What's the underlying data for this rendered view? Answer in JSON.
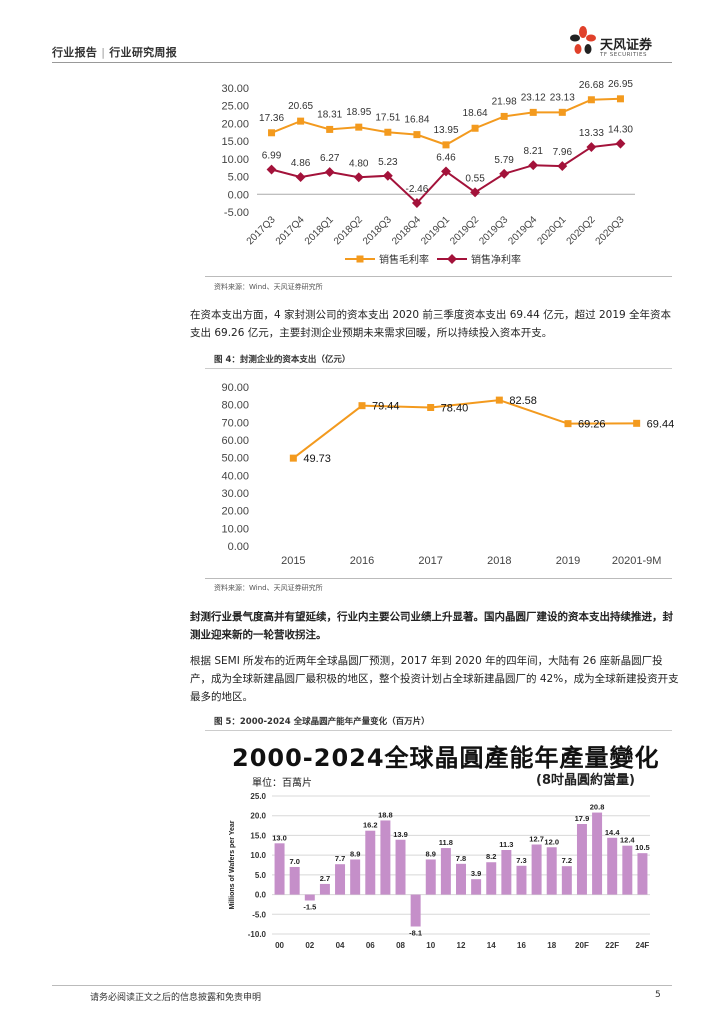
{
  "header": {
    "category": "行业报告",
    "subcategory": "行业研究周报",
    "company_name": "天风证券",
    "company_sub": "TF SECURITIES"
  },
  "chart1": {
    "source": "资料来源：Wind、天风证券研究所"
  },
  "paragraph1": "在资本支出方面，4 家封测公司的资本支出 2020 前三季度资本支出 69.44 亿元，超过 2019 全年资本支出 69.26 亿元，主要封测企业预期未来需求回暖，所以持续投入资本开支。",
  "chart2": {
    "title": "图 4：封测企业的资本支出（亿元）",
    "source": "资料来源：Wind、天风证券研究所"
  },
  "paragraph2": "封测行业景气度高并有望延续，行业内主要公司业绩上升显著。国内晶圆厂建设的资本支出持续推进，封测业迎来新的一轮营收拐注。",
  "paragraph3": "根据 SEMI 所发布的近两年全球晶圆厂预测，2017 年到 2020 年的四年间，大陆有 26 座新晶圆厂投产，成为全球新建晶圆厂最积极的地区，整个投资计划占全球新建晶圆厂的 42%，成为全球新建投资开支最多的地区。",
  "chart3": {
    "caption": "图 5：2000-2024 全球晶圆产能年产量变化（百万片）",
    "poster_title": "2000-2024全球晶圓產能年產量變化",
    "unit": "單位：百萬片",
    "note": "(8吋晶圓約當量)"
  },
  "footer": {
    "disclaimer": "请务必阅读正文之后的信息披露和免责申明",
    "page": "5"
  },
  "colors": {
    "orange": "#f39a1e",
    "crimson": "#a3123a",
    "violet": "#c58fc9"
  },
  "chart_data": [
    {
      "type": "line",
      "categories": [
        "2017Q3",
        "2017Q4",
        "2018Q1",
        "2018Q2",
        "2018Q3",
        "2018Q4",
        "2019Q1",
        "2019Q2",
        "2019Q3",
        "2019Q4",
        "2020Q1",
        "2020Q2",
        "2020Q3"
      ],
      "series": [
        {
          "name": "销售毛利率",
          "values": [
            17.36,
            20.65,
            18.31,
            18.95,
            17.51,
            16.84,
            13.95,
            18.64,
            21.98,
            23.12,
            23.13,
            26.68,
            26.95
          ],
          "labels": [
            "17.36",
            "20.65",
            "18.31",
            "18.95",
            "17.51",
            "16.84",
            "13.95",
            "18.64",
            "21.98",
            "23.12",
            "23.13",
            "26.68",
            "26.95"
          ]
        },
        {
          "name": "销售净利率",
          "values": [
            6.99,
            4.86,
            6.27,
            4.8,
            5.23,
            -2.46,
            6.46,
            0.55,
            5.79,
            8.21,
            7.96,
            13.33,
            14.3
          ],
          "labels": [
            "6.99",
            "4.86",
            "6.27",
            "4.80",
            "5.23",
            "-2.46",
            "6.46",
            "0.55",
            "5.79",
            "8.21",
            "7.96",
            "13.33",
            "14.30"
          ]
        }
      ],
      "ylim": [
        -5,
        30
      ],
      "yticks": [
        "-5.00",
        "0.00",
        "5.00",
        "10.00",
        "15.00",
        "20.00",
        "25.00",
        "30.00"
      ],
      "grid": false,
      "legend": "bottom"
    },
    {
      "type": "line",
      "categories": [
        "2015",
        "2016",
        "2017",
        "2018",
        "2019",
        "20201-9M"
      ],
      "series": [
        {
          "name": "",
          "values": [
            49.73,
            79.44,
            78.4,
            82.58,
            69.26,
            69.44
          ],
          "labels": [
            "49.73",
            "79.44",
            "78.40",
            "82.58",
            "69.26",
            "69.44"
          ]
        }
      ],
      "ylim": [
        0,
        90
      ],
      "yticks": [
        "0.00",
        "10.00",
        "20.00",
        "30.00",
        "40.00",
        "50.00",
        "60.00",
        "70.00",
        "80.00",
        "90.00"
      ],
      "grid": false
    },
    {
      "type": "bar",
      "categories": [
        "00",
        "01",
        "02",
        "03",
        "04",
        "05",
        "06",
        "07",
        "08",
        "09",
        "10",
        "11",
        "12",
        "13",
        "14",
        "15",
        "16",
        "17",
        "18",
        "19",
        "20F",
        "21F",
        "22F",
        "23F",
        "24F"
      ],
      "tick_labels": [
        "00",
        "02",
        "04",
        "06",
        "08",
        "10",
        "12",
        "14",
        "16",
        "18",
        "20F",
        "22F",
        "24F"
      ],
      "values": [
        13.0,
        7.0,
        -1.5,
        2.7,
        7.7,
        8.9,
        16.2,
        18.8,
        13.9,
        -8.1,
        8.9,
        11.8,
        7.8,
        3.9,
        8.2,
        11.3,
        7.3,
        12.7,
        12.0,
        7.2,
        17.9,
        20.8,
        14.4,
        12.4,
        10.5
      ],
      "labels": [
        "13.0",
        "7.0",
        "-1.5",
        "2.7",
        "7.7",
        "8.9",
        "16.2",
        "18.8",
        "13.9",
        "-8.1",
        "8.9",
        "11.8",
        "7.8",
        "3.9",
        "8.2",
        "11.3",
        "7.3",
        "12.7",
        "12.0",
        "7.2",
        "17.9",
        "20.8",
        "14.4",
        "12.4",
        "10.5"
      ],
      "ylabel": "Millions of Wafers per Year",
      "ylim": [
        -10,
        25
      ],
      "yticks": [
        "-10.0",
        "-5.0",
        "0.0",
        "5.0",
        "10.0",
        "15.0",
        "20.0",
        "25.0"
      ],
      "grid": true
    }
  ]
}
